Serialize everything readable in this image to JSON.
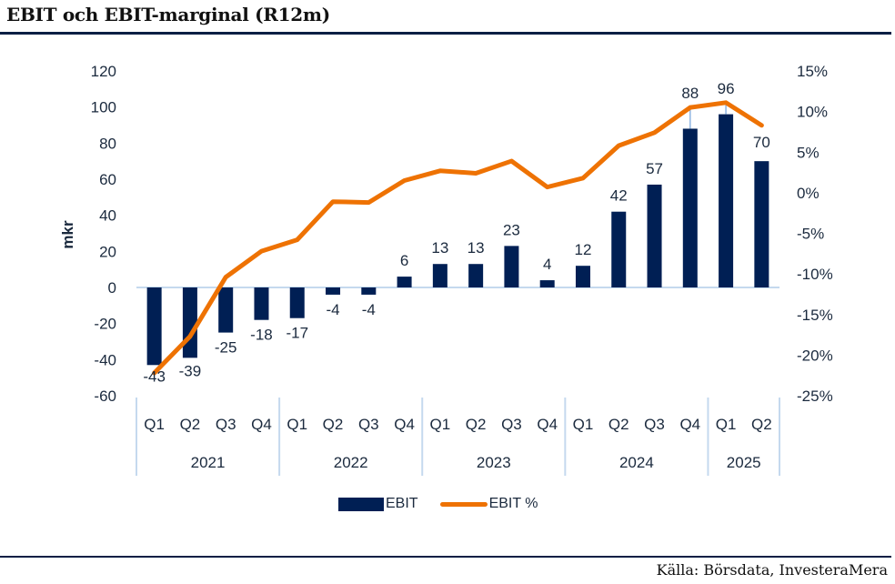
{
  "header": {
    "title": "EBIT och EBIT-marginal (R12m)"
  },
  "footer": {
    "source": "Källa: Börsdata, InvesteraMera"
  },
  "chart_data": {
    "type": "bar+line",
    "title": "EBIT och EBIT-marginal (R12m)",
    "ylabel": "mkr",
    "ylabel_right": "",
    "ylim": [
      -60,
      120
    ],
    "yticks": [
      -60,
      -40,
      -20,
      0,
      20,
      40,
      60,
      80,
      100,
      120
    ],
    "ylim_right": [
      -25,
      15
    ],
    "yticks_right": [
      "-25%",
      "-20%",
      "-15%",
      "-10%",
      "-5%",
      "0%",
      "5%",
      "10%",
      "15%"
    ],
    "yticks_right_values": [
      -25,
      -20,
      -15,
      -10,
      -5,
      0,
      5,
      10,
      15
    ],
    "grid": false,
    "categories": [
      "Q1",
      "Q2",
      "Q3",
      "Q4",
      "Q1",
      "Q2",
      "Q3",
      "Q4",
      "Q1",
      "Q2",
      "Q3",
      "Q4",
      "Q1",
      "Q2",
      "Q3",
      "Q4",
      "Q1",
      "Q2"
    ],
    "year_groups": [
      {
        "label": "2021",
        "count": 4
      },
      {
        "label": "2022",
        "count": 4
      },
      {
        "label": "2023",
        "count": 4
      },
      {
        "label": "2024",
        "count": 4
      },
      {
        "label": "2025",
        "count": 2
      }
    ],
    "series": [
      {
        "name": "EBIT",
        "type": "bar",
        "axis": "left",
        "color": "#001f54",
        "values": [
          -43,
          -39,
          -25,
          -18,
          -17,
          -4,
          -4,
          6,
          13,
          13,
          23,
          4,
          12,
          42,
          57,
          88,
          96,
          70
        ],
        "labels": [
          "-43",
          "-39",
          "-25",
          "-18",
          "-17",
          "-4",
          "-4",
          "6",
          "13",
          "13",
          "23",
          "4",
          "12",
          "42",
          "57",
          "88",
          "96",
          "70"
        ]
      },
      {
        "name": "EBIT %",
        "type": "line",
        "axis": "right",
        "color": "#ee7203",
        "values": [
          -22.2,
          -17.7,
          -10.4,
          -7.2,
          -5.8,
          -1.1,
          -1.2,
          1.5,
          2.7,
          2.4,
          3.9,
          0.7,
          1.8,
          5.8,
          7.4,
          10.5,
          11.1,
          8.3
        ]
      }
    ],
    "legend": {
      "position": "bottom",
      "items": [
        "EBIT",
        "EBIT %"
      ]
    },
    "axis_color": "#c5d9ee"
  }
}
